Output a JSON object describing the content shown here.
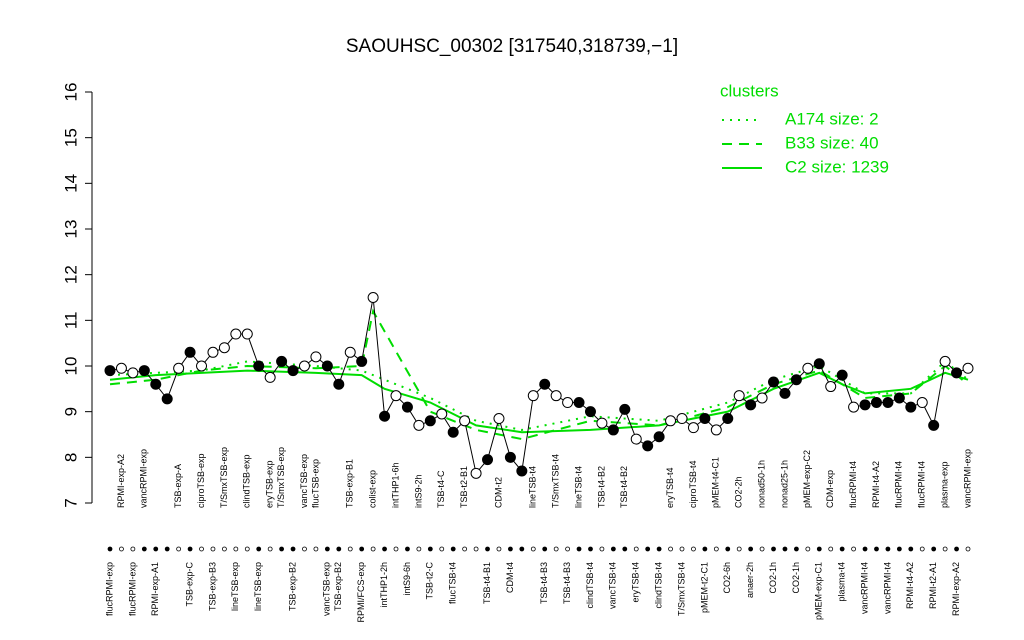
{
  "chart_data": {
    "type": "line",
    "title": "SAOUHSC_00302 [317540,318739,−1]",
    "ylim": [
      7,
      16
    ],
    "yticks": [
      7,
      8,
      9,
      10,
      11,
      12,
      13,
      14,
      15,
      16
    ],
    "categories": [
      "flucRPMI-exp",
      "RPMI-exp-A2",
      "flucRPMI-exp",
      "vancRPMI-exp",
      "RPMI-exp-A1",
      null,
      "TSB-exp-A",
      "TSB-exp-C",
      "ciproTSB-exp",
      "TSB-exp-B3",
      "T/SmxTSB-exp",
      "lineTSB-exp",
      "clindTSB-exp",
      "lineTSB-exp",
      "eryTSB-exp",
      "T/SmxTSB-exp",
      "TSB-exp-B2",
      "vancTSB-exp",
      "flucTSB-exp",
      "vancTSB-exp",
      "TSB-exp-B2",
      "TSB-exp-B1",
      "RPMI/FCS-exp",
      "colist-exp",
      "intTHP1-2h",
      "intTHP1-6h",
      "intS9-6h",
      "intS9-2h",
      "TSB-t2-C",
      "TSB-t4-C",
      "flucTSB-t4",
      "TSB-t2-B1",
      null,
      "TSB-t4-B1",
      "CDM-t2",
      "CDM-t4",
      null,
      "lineTSB-t4",
      "TSB-t4-B3",
      "T/SmxTSB-t4",
      "TSB-t4-B3",
      "lineTSB-t4",
      "clindTSB-t4",
      "TSB-t4-B2",
      "vancTSB-t4",
      "TSB-t4-B2",
      "eryTSB-t4",
      null,
      "clindTSB-t4",
      "eryTSB-t4",
      "T/SmxTSB-t4",
      "ciproTSB-t4",
      "pMEM-t2-C1",
      "pMEM-t4-C1",
      "CO2-6h",
      "CO2-2h",
      "anaer-2h",
      "nonad50-1h",
      "CO2-1h",
      "nonad25-1h",
      "CO2-1h",
      "pMEM-exp-C2",
      "pMEM-exp-C1",
      "CDM-exp",
      "plasma-t4",
      "flucRPMI-t4",
      "vancRPMI-t4",
      "RPMI-t4-A2",
      "vancRPMI-t4",
      "flucRPMI-t4",
      "RPMI-t4-A2",
      "flucRPMI-t4",
      "RPMI-t2-A1",
      "plasma-exp",
      "RPMI-exp-A2",
      "vancRPMI-exp"
    ],
    "label_side": [
      "bottom",
      "top",
      "bottom",
      "top",
      "bottom",
      "bottom",
      "top",
      "bottom",
      "top",
      "bottom",
      "top",
      "bottom",
      "top",
      "bottom",
      "top",
      "top",
      "bottom",
      "top",
      "top",
      "bottom",
      "bottom",
      "top",
      "bottom",
      "top",
      "bottom",
      "top",
      "bottom",
      "top",
      "bottom",
      "top",
      "bottom",
      "top",
      "top",
      "bottom",
      "top",
      "bottom",
      "bottom",
      "top",
      "bottom",
      "top",
      "bottom",
      "top",
      "bottom",
      "top",
      "bottom",
      "top",
      "bottom",
      "bottom",
      "bottom",
      "top",
      "bottom",
      "top",
      "bottom",
      "top",
      "bottom",
      "top",
      "bottom",
      "top",
      "bottom",
      "top",
      "bottom",
      "top",
      "bottom",
      "top",
      "bottom",
      "top",
      "bottom",
      "top",
      "bottom",
      "top",
      "bottom",
      "top",
      "bottom",
      "top",
      "bottom",
      "top"
    ],
    "values": [
      9.9,
      9.95,
      9.85,
      9.9,
      9.6,
      9.28,
      9.95,
      10.3,
      10.0,
      10.3,
      10.4,
      10.7,
      10.7,
      10.0,
      9.75,
      10.1,
      9.9,
      10.0,
      10.2,
      10.0,
      9.6,
      10.3,
      10.1,
      11.5,
      8.9,
      9.35,
      9.1,
      8.7,
      8.8,
      8.95,
      8.55,
      8.8,
      7.65,
      7.95,
      8.85,
      8.0,
      7.7,
      9.35,
      9.6,
      9.35,
      9.2,
      9.2,
      9.0,
      8.75,
      8.6,
      9.05,
      8.4,
      8.25,
      8.45,
      8.8,
      8.85,
      8.65,
      8.85,
      8.6,
      8.85,
      9.35,
      9.15,
      9.3,
      9.65,
      9.4,
      9.7,
      9.95,
      10.05,
      9.55,
      9.8,
      9.1,
      9.15,
      9.2,
      9.2,
      9.3,
      9.1,
      9.2,
      8.7,
      10.1,
      9.85,
      9.95
    ],
    "filled": [
      true,
      false,
      false,
      true,
      true,
      true,
      false,
      true,
      false,
      false,
      false,
      false,
      false,
      true,
      false,
      true,
      true,
      false,
      false,
      true,
      true,
      false,
      true,
      false,
      true,
      false,
      true,
      false,
      true,
      false,
      true,
      false,
      false,
      true,
      false,
      true,
      true,
      false,
      true,
      false,
      false,
      true,
      true,
      false,
      true,
      true,
      false,
      true,
      true,
      false,
      false,
      false,
      true,
      false,
      true,
      false,
      true,
      false,
      true,
      true,
      true,
      false,
      true,
      false,
      true,
      false,
      true,
      true,
      true,
      true,
      true,
      false,
      true,
      false,
      true,
      false
    ],
    "legend_title": "clusters",
    "clusters": [
      {
        "name": "A174 size: 2",
        "style": "dotted",
        "color": "#00dd00",
        "x": [
          0,
          4,
          8,
          12,
          18,
          22,
          24,
          28,
          32,
          36,
          42,
          48,
          54,
          58,
          62,
          64,
          66,
          70,
          73,
          75
        ],
        "values": [
          9.8,
          9.85,
          9.9,
          10.1,
          10.0,
          9.9,
          9.7,
          9.3,
          8.8,
          8.6,
          8.9,
          8.8,
          9.2,
          9.7,
          10.0,
          9.7,
          9.4,
          9.4,
          10.1,
          9.7
        ]
      },
      {
        "name": "B33 size: 40",
        "style": "dashed",
        "color": "#00dd00",
        "x": [
          0,
          4,
          8,
          12,
          18,
          22,
          23,
          28,
          32,
          36,
          42,
          48,
          54,
          58,
          62,
          64,
          66,
          70,
          73,
          75
        ],
        "values": [
          9.6,
          9.7,
          9.9,
          10.0,
          9.95,
          10.0,
          11.2,
          9.0,
          8.6,
          8.4,
          8.8,
          8.7,
          9.1,
          9.6,
          9.9,
          9.6,
          9.3,
          9.4,
          10.0,
          9.6
        ]
      },
      {
        "name": "C2 size: 1239",
        "style": "solid",
        "color": "#00dd00",
        "x": [
          0,
          4,
          8,
          12,
          18,
          22,
          24,
          28,
          32,
          36,
          42,
          48,
          54,
          58,
          62,
          64,
          66,
          70,
          73,
          75
        ],
        "values": [
          9.7,
          9.8,
          9.85,
          9.9,
          9.85,
          9.8,
          9.5,
          9.2,
          8.7,
          8.55,
          8.6,
          8.7,
          9.0,
          9.5,
          9.85,
          9.6,
          9.4,
          9.5,
          9.85,
          9.7
        ]
      }
    ]
  }
}
